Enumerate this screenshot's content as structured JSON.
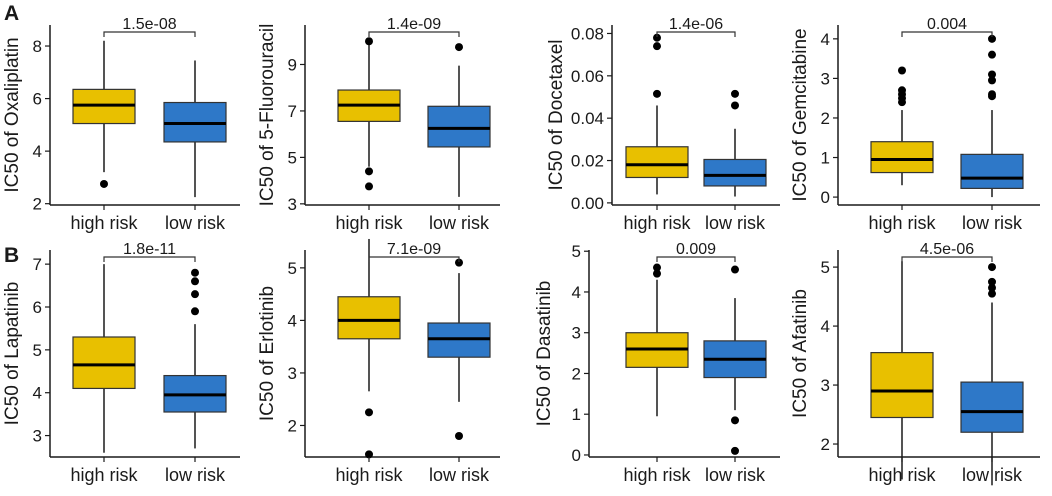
{
  "panel_labels": [
    "A",
    "B"
  ],
  "colors": {
    "high_risk": "#E8C000",
    "low_risk": "#2E78C8",
    "outline": "#1a1a1a"
  },
  "chart_data": [
    {
      "type": "box",
      "ylabel": "IC50 of Oxaliplatin",
      "pvalue": "1.5e-08",
      "categories": [
        "high risk",
        "low risk"
      ],
      "ylim": [
        1.95,
        8.8
      ],
      "yticks": [
        2,
        4,
        6,
        8
      ],
      "ytick_labels": [
        "2",
        "4",
        "6",
        "8"
      ],
      "boxes": [
        {
          "min": 3.2,
          "q1": 5.05,
          "median": 5.75,
          "q3": 6.35,
          "max": 8.2,
          "outliers": [
            2.75
          ]
        },
        {
          "min": 2.25,
          "q1": 4.35,
          "median": 5.05,
          "q3": 5.85,
          "max": 7.45,
          "outliers": []
        }
      ]
    },
    {
      "type": "box",
      "ylabel": "IC50 of 5-Fluorouracil",
      "pvalue": "1.4e-09",
      "categories": [
        "high risk",
        "low risk"
      ],
      "ylim": [
        2.95,
        10.7
      ],
      "yticks": [
        3,
        5,
        7,
        9
      ],
      "ytick_labels": [
        "3",
        "5",
        "7",
        "9"
      ],
      "boxes": [
        {
          "min": 4.6,
          "q1": 6.55,
          "median": 7.25,
          "q3": 7.9,
          "max": 9.9,
          "outliers": [
            10.0,
            4.4,
            3.75
          ]
        },
        {
          "min": 3.3,
          "q1": 5.45,
          "median": 6.25,
          "q3": 7.2,
          "max": 8.95,
          "outliers": [
            9.75
          ]
        }
      ]
    },
    {
      "type": "box",
      "ylabel": "IC50 of Docetaxel",
      "pvalue": "1.4e-06",
      "categories": [
        "high risk",
        "low risk"
      ],
      "ylim": [
        -0.001,
        0.084
      ],
      "yticks": [
        0,
        0.02,
        0.04,
        0.06,
        0.08
      ],
      "ytick_labels": [
        "0.00",
        "0.02",
        "0.04",
        "0.06",
        "0.08"
      ],
      "boxes": [
        {
          "min": 0.004,
          "q1": 0.012,
          "median": 0.018,
          "q3": 0.0265,
          "max": 0.046,
          "outliers": [
            0.0515,
            0.074,
            0.078
          ]
        },
        {
          "min": 0.003,
          "q1": 0.008,
          "median": 0.013,
          "q3": 0.0205,
          "max": 0.035,
          "outliers": [
            0.046,
            0.0515
          ]
        }
      ]
    },
    {
      "type": "box",
      "ylabel": "IC50 of Gemcitabine",
      "pvalue": "0.004",
      "categories": [
        "high risk",
        "low risk"
      ],
      "ylim": [
        -0.2,
        4.35
      ],
      "yticks": [
        0,
        1,
        2,
        3,
        4
      ],
      "ytick_labels": [
        "0",
        "1",
        "2",
        "3",
        "4"
      ],
      "boxes": [
        {
          "min": 0.3,
          "q1": 0.62,
          "median": 0.95,
          "q3": 1.4,
          "max": 2.2,
          "outliers": [
            2.4,
            2.5,
            2.6,
            2.7,
            3.2
          ]
        },
        {
          "min": 0.0,
          "q1": 0.22,
          "median": 0.48,
          "q3": 1.08,
          "max": 2.2,
          "outliers": [
            2.55,
            2.6,
            2.95,
            3.1,
            3.6,
            4.0
          ]
        }
      ]
    },
    {
      "type": "box",
      "ylabel": "IC50 of Lapatinib",
      "pvalue": "1.8e-11",
      "categories": [
        "high risk",
        "low risk"
      ],
      "ylim": [
        2.5,
        7.33
      ],
      "yticks": [
        3,
        4,
        5,
        6,
        7
      ],
      "ytick_labels": [
        "3",
        "4",
        "5",
        "6",
        "7"
      ],
      "boxes": [
        {
          "min": 2.6,
          "q1": 4.1,
          "median": 4.65,
          "q3": 5.3,
          "max": 7.0,
          "outliers": []
        },
        {
          "min": 2.7,
          "q1": 3.55,
          "median": 3.95,
          "q3": 4.4,
          "max": 5.6,
          "outliers": [
            5.9,
            6.3,
            6.6,
            6.8
          ]
        }
      ]
    },
    {
      "type": "box",
      "ylabel": "IC50 of Erlotinib",
      "pvalue": "7.1e-09",
      "categories": [
        "high risk",
        "low risk"
      ],
      "ylim": [
        1.4,
        5.34
      ],
      "yticks": [
        2,
        3,
        4,
        5
      ],
      "ytick_labels": [
        "2",
        "3",
        "4",
        "5"
      ],
      "boxes": [
        {
          "min": 2.65,
          "q1": 3.65,
          "median": 4.0,
          "q3": 4.45,
          "max": 5.55,
          "outliers": [
            2.25,
            1.45
          ]
        },
        {
          "min": 2.45,
          "q1": 3.3,
          "median": 3.65,
          "q3": 3.95,
          "max": 4.9,
          "outliers": [
            5.1,
            1.8
          ]
        }
      ]
    },
    {
      "type": "box",
      "ylabel": "IC50 of Dasatinib",
      "pvalue": "0.009",
      "categories": [
        "high risk",
        "low risk"
      ],
      "ylim": [
        -0.05,
        5.03
      ],
      "yticks": [
        0,
        1,
        2,
        3,
        4,
        5
      ],
      "ytick_labels": [
        "0",
        "1",
        "2",
        "3",
        "4",
        "5"
      ],
      "boxes": [
        {
          "min": 0.95,
          "q1": 2.15,
          "median": 2.6,
          "q3": 3.0,
          "max": 4.3,
          "outliers": [
            4.45,
            4.6
          ]
        },
        {
          "min": 1.1,
          "q1": 1.9,
          "median": 2.35,
          "q3": 2.8,
          "max": 3.85,
          "outliers": [
            4.55,
            0.85,
            0.1
          ]
        }
      ]
    },
    {
      "type": "box",
      "ylabel": "IC50 of Afatinib",
      "pvalue": "4.5e-06",
      "categories": [
        "high risk",
        "low risk"
      ],
      "ylim": [
        1.78,
        5.29
      ],
      "yticks": [
        2,
        3,
        4,
        5
      ],
      "ytick_labels": [
        "2",
        "3",
        "4",
        "5"
      ],
      "boxes": [
        {
          "min": 1.4,
          "q1": 2.45,
          "median": 2.9,
          "q3": 3.55,
          "max": 5.1,
          "outliers": []
        },
        {
          "min": 1.3,
          "q1": 2.2,
          "median": 2.55,
          "q3": 3.05,
          "max": 4.4,
          "outliers": [
            4.55,
            4.65,
            4.75,
            5.0
          ]
        }
      ]
    }
  ]
}
